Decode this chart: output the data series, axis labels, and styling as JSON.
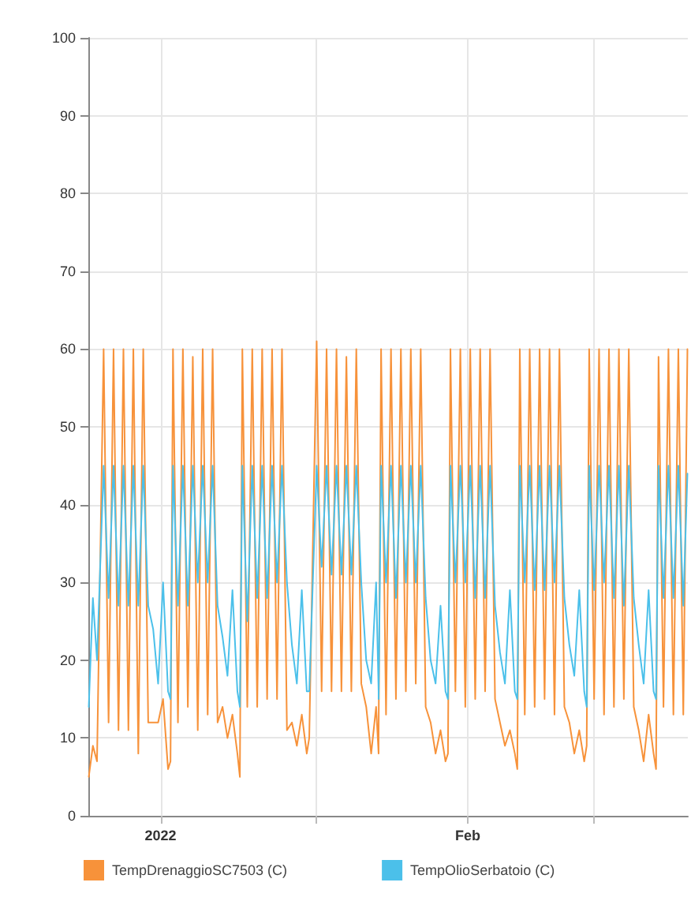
{
  "chart_data": {
    "type": "line",
    "grid": true,
    "legend": "bottom left",
    "marker": "none",
    "line_style": "solid",
    "xlim": [
      "2021-12-24T17:00",
      "2022-02-23T05:00"
    ],
    "xticks": [
      {
        "value": "2022-01-01T00:00",
        "label": "2022"
      },
      {
        "value": "2022-01-16T16:00",
        "label": null
      },
      {
        "value": "2022-02-01T00:00",
        "label": "Feb"
      },
      {
        "value": "2022-02-13T17:00",
        "label": null
      }
    ],
    "ylim": [
      0,
      100
    ],
    "yticks": [
      0,
      10,
      20,
      30,
      40,
      50,
      60,
      70,
      80,
      90,
      100
    ],
    "x": [
      "2021-12-24T18:00",
      "2021-12-25T04:00",
      "2021-12-25T14:00",
      "2021-12-26T06:00",
      "2021-12-26T18:00",
      "2021-12-27T06:00",
      "2021-12-27T18:00",
      "2021-12-28T06:00",
      "2021-12-28T18:00",
      "2021-12-29T06:00",
      "2021-12-29T18:00",
      "2021-12-30T06:00",
      "2021-12-30T18:00",
      "2021-12-31T06:00",
      "2021-12-31T18:00",
      "2022-01-01T06:00",
      "2022-01-01T18:00",
      "2022-01-02T00:00",
      "2022-01-02T06:00",
      "2022-01-02T18:00",
      "2022-01-03T06:00",
      "2022-01-03T18:00",
      "2022-01-04T06:00",
      "2022-01-04T18:00",
      "2022-01-05T06:00",
      "2022-01-05T18:00",
      "2022-01-06T06:00",
      "2022-01-06T18:00",
      "2022-01-07T06:00",
      "2022-01-07T18:00",
      "2022-01-08T06:00",
      "2022-01-08T18:00",
      "2022-01-09T00:00",
      "2022-01-09T06:00",
      "2022-01-09T18:00",
      "2022-01-10T06:00",
      "2022-01-10T18:00",
      "2022-01-11T06:00",
      "2022-01-11T18:00",
      "2022-01-12T06:00",
      "2022-01-12T18:00",
      "2022-01-13T06:00",
      "2022-01-13T18:00",
      "2022-01-14T06:00",
      "2022-01-14T18:00",
      "2022-01-15T06:00",
      "2022-01-15T18:00",
      "2022-01-16T00:00",
      "2022-01-16T18:00",
      "2022-01-17T06:00",
      "2022-01-17T18:00",
      "2022-01-18T06:00",
      "2022-01-18T18:00",
      "2022-01-19T06:00",
      "2022-01-19T18:00",
      "2022-01-20T06:00",
      "2022-01-20T18:00",
      "2022-01-21T06:00",
      "2022-01-21T18:00",
      "2022-01-22T06:00",
      "2022-01-22T18:00",
      "2022-01-23T00:00",
      "2022-01-23T00:00",
      "2022-01-23T06:00",
      "2022-01-23T18:00",
      "2022-01-24T06:00",
      "2022-01-24T18:00",
      "2022-01-25T06:00",
      "2022-01-25T18:00",
      "2022-01-26T06:00",
      "2022-01-26T18:00",
      "2022-01-27T06:00",
      "2022-01-27T18:00",
      "2022-01-28T06:00",
      "2022-01-28T18:00",
      "2022-01-29T06:00",
      "2022-01-29T18:00",
      "2022-01-30T00:00",
      "2022-01-30T06:00",
      "2022-01-30T18:00",
      "2022-01-31T06:00",
      "2022-01-31T18:00",
      "2022-02-01T06:00",
      "2022-02-01T18:00",
      "2022-02-02T06:00",
      "2022-02-02T18:00",
      "2022-02-03T06:00",
      "2022-02-03T18:00",
      "2022-02-04T06:00",
      "2022-02-04T18:00",
      "2022-02-05T06:00",
      "2022-02-05T18:00",
      "2022-02-06T00:00",
      "2022-02-06T06:00",
      "2022-02-06T18:00",
      "2022-02-07T06:00",
      "2022-02-07T18:00",
      "2022-02-08T06:00",
      "2022-02-08T18:00",
      "2022-02-09T06:00",
      "2022-02-09T18:00",
      "2022-02-10T06:00",
      "2022-02-10T18:00",
      "2022-02-11T06:00",
      "2022-02-11T18:00",
      "2022-02-12T06:00",
      "2022-02-12T18:00",
      "2022-02-13T00:00",
      "2022-02-13T06:00",
      "2022-02-13T18:00",
      "2022-02-14T06:00",
      "2022-02-14T18:00",
      "2022-02-15T06:00",
      "2022-02-15T18:00",
      "2022-02-16T06:00",
      "2022-02-16T18:00",
      "2022-02-17T06:00",
      "2022-02-17T18:00",
      "2022-02-18T06:00",
      "2022-02-18T18:00",
      "2022-02-19T06:00",
      "2022-02-19T18:00",
      "2022-02-20T00:00",
      "2022-02-20T06:00",
      "2022-02-20T18:00",
      "2022-02-21T06:00",
      "2022-02-21T18:00",
      "2022-02-22T06:00",
      "2022-02-22T18:00",
      "2022-02-23T04:00"
    ],
    "series": [
      {
        "name": "TempDrenaggioSC7503 (C)",
        "color": "#f7923a",
        "values": [
          5,
          9,
          7,
          60,
          12,
          60,
          11,
          60,
          11,
          60,
          8,
          60,
          12,
          12,
          12,
          15,
          6,
          7,
          60,
          12,
          60,
          14,
          59,
          11,
          60,
          13,
          60,
          12,
          14,
          10,
          13,
          8,
          5,
          60,
          14,
          60,
          14,
          60,
          15,
          60,
          15,
          60,
          11,
          12,
          9,
          13,
          8,
          10,
          61,
          16,
          60,
          16,
          60,
          16,
          59,
          16,
          60,
          17,
          14,
          8,
          14,
          8,
          10,
          60,
          13,
          60,
          15,
          60,
          16,
          60,
          17,
          60,
          14,
          12,
          8,
          11,
          7,
          8,
          60,
          16,
          60,
          14,
          60,
          15,
          60,
          16,
          60,
          15,
          12,
          9,
          11,
          8,
          6,
          60,
          13,
          60,
          14,
          60,
          15,
          60,
          13,
          60,
          14,
          12,
          8,
          11,
          7,
          9,
          60,
          15,
          60,
          13,
          60,
          14,
          60,
          15,
          60,
          14,
          11,
          7,
          13,
          8,
          6,
          59,
          14,
          60,
          13,
          60,
          13,
          60
        ]
      },
      {
        "name": "TempOlioSerbatoio (C)",
        "color": "#4bc0ea",
        "values": [
          14,
          28,
          20,
          45,
          28,
          45,
          27,
          45,
          27,
          45,
          27,
          45,
          27,
          24,
          17,
          30,
          16,
          15,
          45,
          27,
          45,
          27,
          45,
          30,
          45,
          30,
          45,
          27,
          23,
          18,
          29,
          16,
          14,
          45,
          25,
          45,
          28,
          45,
          28,
          45,
          30,
          45,
          30,
          22,
          17,
          29,
          16,
          16,
          45,
          32,
          45,
          31,
          45,
          31,
          45,
          31,
          45,
          30,
          20,
          17,
          30,
          16,
          15,
          45,
          30,
          45,
          28,
          45,
          30,
          45,
          30,
          45,
          28,
          20,
          17,
          27,
          16,
          15,
          45,
          30,
          45,
          30,
          45,
          28,
          45,
          28,
          45,
          27,
          21,
          17,
          29,
          16,
          15,
          45,
          30,
          45,
          29,
          45,
          29,
          45,
          30,
          45,
          28,
          22,
          18,
          29,
          16,
          14,
          45,
          29,
          45,
          30,
          45,
          28,
          45,
          27,
          45,
          28,
          22,
          17,
          29,
          16,
          15,
          45,
          28,
          45,
          28,
          45,
          27,
          44
        ]
      }
    ]
  }
}
